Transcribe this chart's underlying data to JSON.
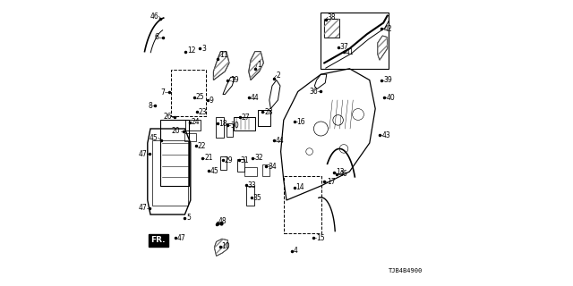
{
  "title": "",
  "diagram_id": "TJB4B4900",
  "background_color": "#ffffff",
  "line_color": "#000000",
  "fig_width": 6.4,
  "fig_height": 3.2,
  "dpi": 100,
  "label_fontsize": 5.5,
  "diagram_id_fontsize": 5.0
}
